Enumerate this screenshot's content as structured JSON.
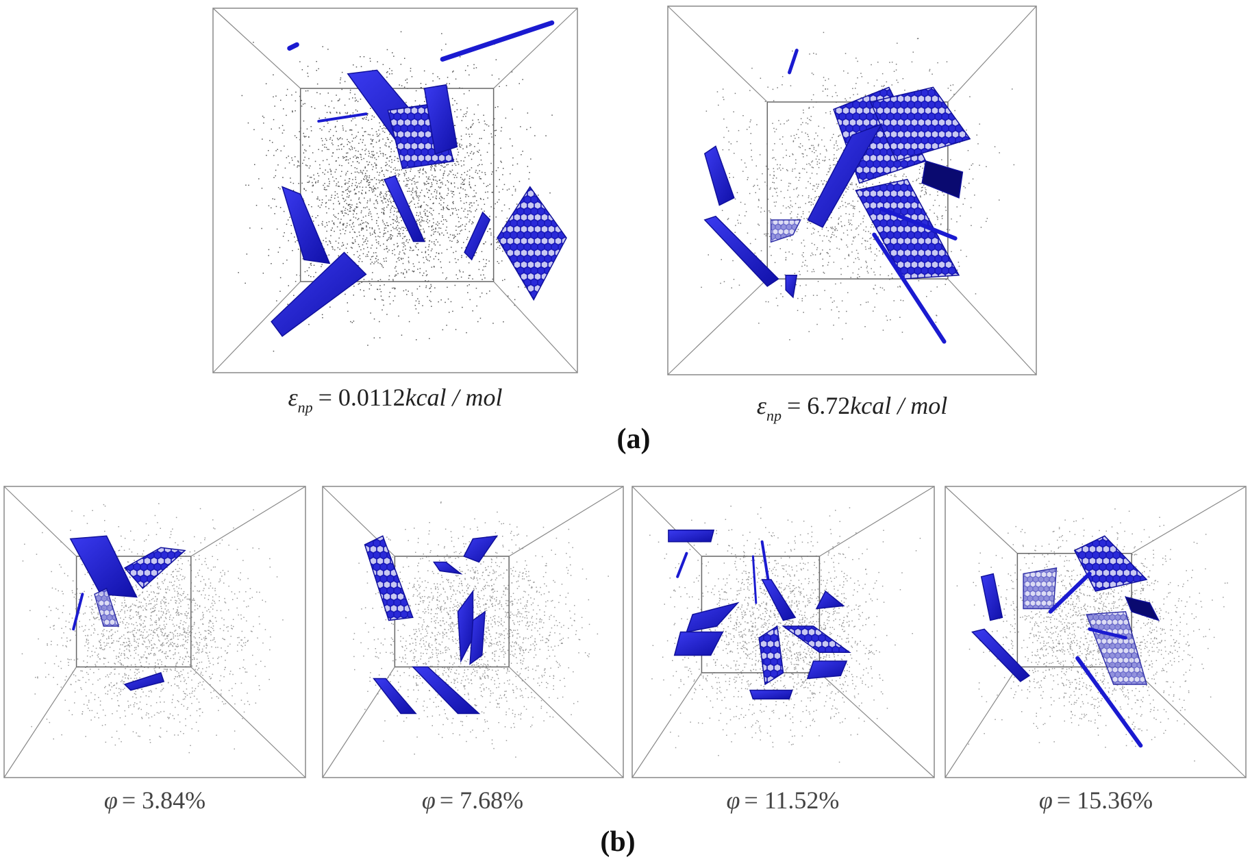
{
  "panels": {
    "a": {
      "label": "(a)",
      "images": [
        {
          "caption": {
            "symbol": "ε",
            "subscript": "np",
            "value": "= 0.0112",
            "unit": "kcal / mol"
          }
        },
        {
          "caption": {
            "symbol": "ε",
            "subscript": "np",
            "value": "= 6.72",
            "unit": "kcal / mol"
          }
        }
      ]
    },
    "b": {
      "label": "(b)",
      "images": [
        {
          "caption": {
            "symbol": "φ",
            "value": "= 3.84%"
          }
        },
        {
          "caption": {
            "symbol": "φ",
            "value": "= 7.68%"
          }
        },
        {
          "caption": {
            "symbol": "φ",
            "value": "= 11.52%"
          }
        },
        {
          "caption": {
            "symbol": "φ",
            "value": "= 15.36%"
          }
        }
      ]
    }
  }
}
